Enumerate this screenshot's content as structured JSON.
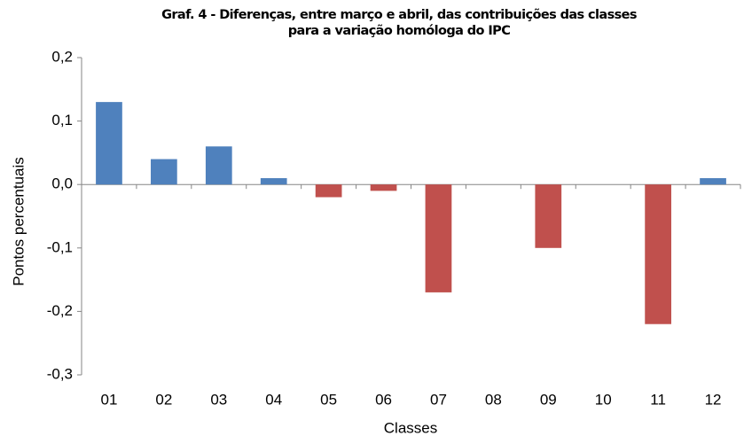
{
  "chart_data": {
    "type": "bar",
    "title": "Graf. 4 - Diferenças, entre março e abril, das contribuições das classes para a variação homóloga do IPC",
    "x_label": "Classes",
    "y_label": "Pontos percentuais",
    "categories": [
      "01",
      "02",
      "03",
      "04",
      "05",
      "06",
      "07",
      "08",
      "09",
      "10",
      "11",
      "12"
    ],
    "values": [
      0.13,
      0.04,
      0.06,
      0.01,
      -0.02,
      -0.01,
      -0.17,
      0,
      -0.1,
      0,
      -0.22,
      0.01
    ],
    "colors": [
      "#4f81bd",
      "#4f81bd",
      "#4f81bd",
      "#4f81bd",
      "#c0504d",
      "#c0504d",
      "#c0504d",
      "#c0504d",
      "#c0504d",
      "#c0504d",
      "#c0504d",
      "#4f81bd"
    ],
    "ylim": [
      -0.3,
      0.2
    ],
    "yticks": [
      {
        "value": -0.3,
        "label": "-0,3"
      },
      {
        "value": -0.2,
        "label": "-0,2"
      },
      {
        "value": -0.1,
        "label": "-0,1"
      },
      {
        "value": 0,
        "label": "0,0"
      },
      {
        "value": 0.1,
        "label": "0,1"
      },
      {
        "value": 0.2,
        "label": "0,2"
      }
    ],
    "grid": false
  }
}
